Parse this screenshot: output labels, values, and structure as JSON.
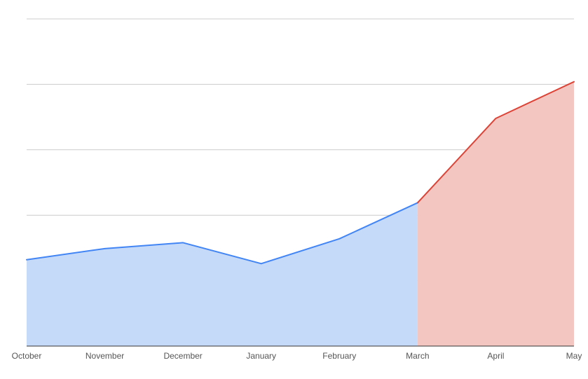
{
  "chart_data": {
    "type": "area",
    "categories": [
      "October",
      "November",
      "December",
      "January",
      "February",
      "March",
      "April",
      "May"
    ],
    "ylim": [
      0,
      5
    ],
    "grid": true,
    "legend": "none",
    "series": [
      {
        "values": [
          1.32,
          1.49,
          1.58,
          1.26,
          1.64,
          2.19,
          null,
          null
        ],
        "color": "#4285f4",
        "fill": "#c5d9f8"
      },
      {
        "values": [
          null,
          null,
          null,
          null,
          null,
          2.19,
          3.48,
          4.04
        ],
        "color": "#db4437",
        "fill": "#f4c6c2"
      }
    ]
  }
}
